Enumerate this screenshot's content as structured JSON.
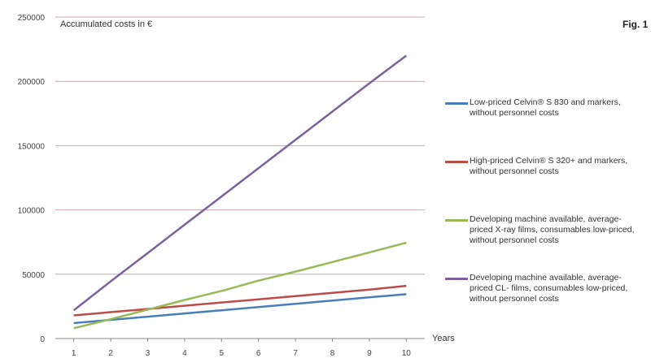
{
  "fig_label": "Fig. 1",
  "chart_data": {
    "type": "line",
    "ylabel": "Accumulated costs in €",
    "xlabel": "Years",
    "x": [
      1,
      2,
      3,
      4,
      5,
      6,
      7,
      8,
      9,
      10
    ],
    "ylim": [
      0,
      250000
    ],
    "yticks": [
      0,
      50000,
      100000,
      150000,
      200000,
      250000
    ],
    "ytick_labels": [
      "0",
      "50000",
      "100000",
      "150000",
      "200000",
      "250000"
    ],
    "grid": "horizontal",
    "legend_position": "right",
    "series": [
      {
        "name": "Low-priced Celvin® S 830 and markers,\nwithout personnel costs",
        "color": "#4a7ebb",
        "values": [
          12000,
          14500,
          17000,
          19500,
          22000,
          24500,
          27000,
          29500,
          32000,
          34500
        ]
      },
      {
        "name": "High-priced Celvin® S 320+ and markers,\nwithout personnel costs",
        "color": "#be4b48",
        "values": [
          18000,
          20500,
          23000,
          25500,
          28000,
          30500,
          33000,
          35500,
          38000,
          41000
        ]
      },
      {
        "name": "Developing machine available, average-\npriced X-ray films, consumables low-priced,\nwithout personnel costs",
        "color": "#98b954",
        "values": [
          8000,
          15000,
          22500,
          30000,
          37000,
          45000,
          52000,
          59500,
          67000,
          74500
        ]
      },
      {
        "name": "Developing machine available, average-\npriced CL- films, consumables low-priced,\nwithout personnel costs",
        "color": "#7d60a0",
        "values": [
          22000,
          44500,
          66500,
          88500,
          110500,
          132500,
          154500,
          176500,
          198500,
          220000
        ]
      }
    ]
  }
}
